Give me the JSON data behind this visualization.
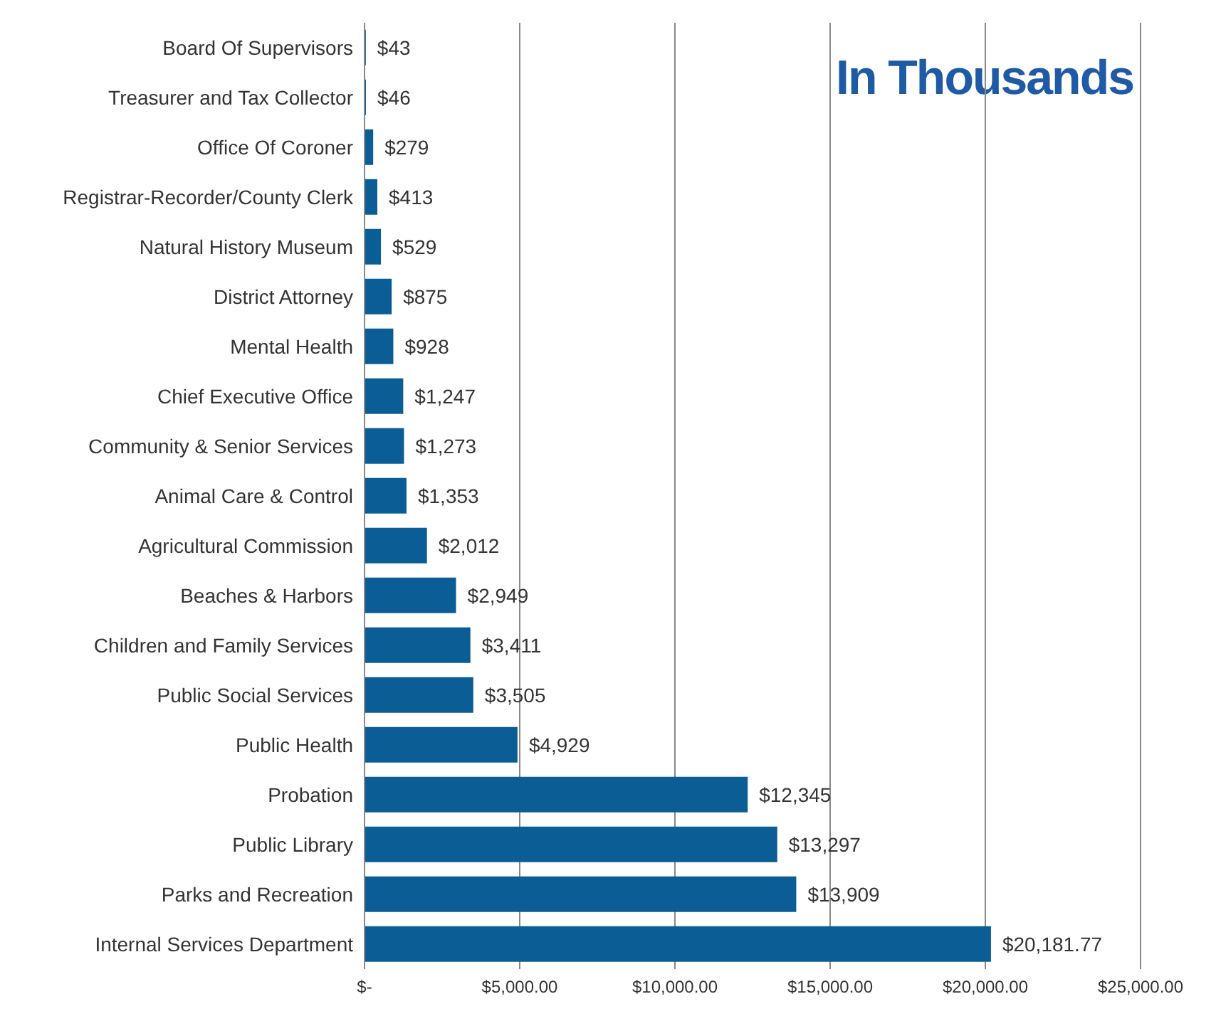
{
  "chart_data": {
    "type": "bar",
    "orientation": "horizontal",
    "title": "In Thousands",
    "categories": [
      "Board Of Supervisors",
      "Treasurer and Tax Collector",
      "Office Of Coroner",
      "Registrar-Recorder/County Clerk",
      "Natural History Museum",
      "District Attorney",
      "Mental Health",
      "Chief Executive Office",
      "Community & Senior Services",
      "Animal Care & Control",
      "Agricultural Commission",
      "Beaches & Harbors",
      "Children and Family Services",
      "Public Social Services",
      "Public Health",
      "Probation",
      "Public Library",
      "Parks and Recreation",
      "Internal Services Department"
    ],
    "values": [
      43,
      46,
      279,
      413,
      529,
      875,
      928,
      1247,
      1273,
      1353,
      2012,
      2949,
      3411,
      3505,
      4929,
      12345,
      13297,
      13909,
      20181.77
    ],
    "value_labels": [
      "$43",
      "$46",
      "$279",
      "$413",
      "$529",
      "$875",
      "$928",
      "$1,247",
      "$1,273",
      "$1,353",
      "$2,012",
      "$2,949",
      "$3,411",
      "$3,505",
      "$4,929",
      "$12,345",
      "$13,297",
      "$13,909",
      "$20,181.77"
    ],
    "color": "#0b5e95",
    "xlim": [
      0,
      25000
    ],
    "xticks": [
      {
        "value": 0,
        "label": "$-"
      },
      {
        "value": 5000,
        "label": "$5,000.00"
      },
      {
        "value": 10000,
        "label": "$10,000.00"
      },
      {
        "value": 15000,
        "label": "$15,000.00"
      },
      {
        "value": 20000,
        "label": "$20,000.00"
      },
      {
        "value": 25000,
        "label": "$25,000.00"
      }
    ],
    "grid": "x"
  }
}
